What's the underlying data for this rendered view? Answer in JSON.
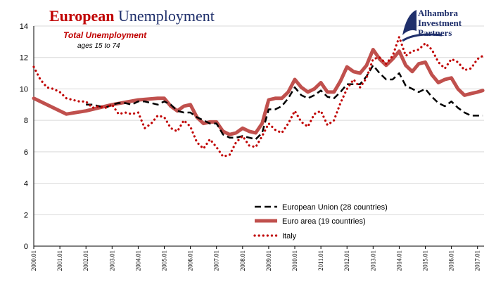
{
  "header": {
    "title_part1": "European",
    "title_part2": "Unemployment"
  },
  "logo": {
    "line1": "Alhambra",
    "line2": "Investment",
    "line3": "Partners",
    "colors": {
      "navy": "#1f2f6b"
    }
  },
  "chart_data": {
    "type": "line",
    "title": "European Unemployment",
    "annotation_title": "Total Unemployment",
    "annotation_sub": "ages 15 to 74",
    "ylim": [
      0,
      14
    ],
    "yticks": [
      0,
      2,
      4,
      6,
      8,
      10,
      12,
      14
    ],
    "xlim": [
      2000.0,
      2017.25
    ],
    "xticks": [
      "2000.01",
      "2001.01",
      "2002.01",
      "2003.01",
      "2004.01",
      "2005.01",
      "2006.01",
      "2007.01",
      "2008.01",
      "2009.01",
      "2010.01",
      "2011.01",
      "2012.01",
      "2013.01",
      "2014.01",
      "2015.01",
      "2016.01",
      "2017.01"
    ],
    "legend_position": "bottom-right",
    "series": [
      {
        "name": "European Union (28 countries)",
        "color": "#000000",
        "style": "dashed",
        "x": [
          2002.0,
          2002.25,
          2002.5,
          2002.75,
          2003.0,
          2003.25,
          2003.5,
          2003.75,
          2004.0,
          2004.25,
          2004.5,
          2004.75,
          2005.0,
          2005.25,
          2005.5,
          2005.75,
          2006.0,
          2006.25,
          2006.5,
          2006.75,
          2007.0,
          2007.25,
          2007.5,
          2007.75,
          2008.0,
          2008.25,
          2008.5,
          2008.75,
          2009.0,
          2009.25,
          2009.5,
          2009.75,
          2010.0,
          2010.25,
          2010.5,
          2010.75,
          2011.0,
          2011.25,
          2011.5,
          2011.75,
          2012.0,
          2012.25,
          2012.5,
          2012.75,
          2013.0,
          2013.25,
          2013.5,
          2013.75,
          2014.0,
          2014.25,
          2014.5,
          2014.75,
          2015.0,
          2015.25,
          2015.5,
          2015.75,
          2016.0,
          2016.25,
          2016.5,
          2016.75,
          2017.0,
          2017.2
        ],
        "values": [
          9.0,
          9.0,
          8.9,
          8.8,
          9.0,
          9.1,
          9.1,
          9.0,
          9.2,
          9.2,
          9.1,
          9.0,
          9.2,
          9.0,
          8.6,
          8.5,
          8.5,
          8.2,
          8.0,
          7.8,
          7.8,
          7.1,
          6.9,
          6.9,
          7.0,
          6.9,
          6.8,
          7.2,
          8.7,
          8.7,
          8.9,
          9.4,
          10.1,
          9.6,
          9.4,
          9.6,
          9.9,
          9.5,
          9.4,
          9.8,
          10.3,
          10.3,
          10.3,
          10.8,
          11.5,
          11.0,
          10.6,
          10.6,
          11.0,
          10.2,
          10.0,
          9.8,
          10.0,
          9.5,
          9.1,
          8.9,
          9.2,
          8.8,
          8.5,
          8.3,
          8.3,
          8.3
        ]
      },
      {
        "name": "Euro area (19 countries)",
        "color": "#c0504d",
        "style": "solid",
        "x": [
          2000.0,
          2001.25,
          2002.0,
          2003.0,
          2004.0,
          2004.75,
          2005.0,
          2005.25,
          2005.5,
          2005.75,
          2006.0,
          2006.25,
          2006.5,
          2006.75,
          2007.0,
          2007.25,
          2007.5,
          2007.75,
          2008.0,
          2008.25,
          2008.5,
          2008.75,
          2009.0,
          2009.25,
          2009.5,
          2009.75,
          2010.0,
          2010.25,
          2010.5,
          2010.75,
          2011.0,
          2011.25,
          2011.5,
          2011.75,
          2012.0,
          2012.25,
          2012.5,
          2012.75,
          2013.0,
          2013.25,
          2013.5,
          2013.75,
          2014.0,
          2014.25,
          2014.5,
          2014.75,
          2015.0,
          2015.25,
          2015.5,
          2015.75,
          2016.0,
          2016.25,
          2016.5,
          2016.75,
          2017.0,
          2017.2
        ],
        "values": [
          9.4,
          8.4,
          8.6,
          9.0,
          9.3,
          9.4,
          9.4,
          8.9,
          8.6,
          8.9,
          9.0,
          8.2,
          7.8,
          7.9,
          7.9,
          7.3,
          7.1,
          7.2,
          7.5,
          7.3,
          7.2,
          7.8,
          9.3,
          9.4,
          9.4,
          9.8,
          10.6,
          10.1,
          9.8,
          10.0,
          10.4,
          9.8,
          9.8,
          10.5,
          11.4,
          11.1,
          11.0,
          11.5,
          12.5,
          11.9,
          11.5,
          11.9,
          12.4,
          11.5,
          11.1,
          11.6,
          11.7,
          10.9,
          10.4,
          10.6,
          10.7,
          10.0,
          9.6,
          9.7,
          9.8,
          9.9
        ]
      },
      {
        "name": "Italy",
        "color": "#c00000",
        "style": "dotted",
        "x": [
          2000.0,
          2000.25,
          2000.5,
          2000.75,
          2001.0,
          2001.25,
          2001.5,
          2001.75,
          2002.0,
          2002.25,
          2002.5,
          2002.75,
          2003.0,
          2003.25,
          2003.5,
          2003.75,
          2004.0,
          2004.25,
          2004.5,
          2004.75,
          2005.0,
          2005.25,
          2005.5,
          2005.75,
          2006.0,
          2006.25,
          2006.5,
          2006.75,
          2007.0,
          2007.25,
          2007.5,
          2007.75,
          2008.0,
          2008.25,
          2008.5,
          2008.75,
          2009.0,
          2009.25,
          2009.5,
          2009.75,
          2010.0,
          2010.25,
          2010.5,
          2010.75,
          2011.0,
          2011.25,
          2011.5,
          2011.75,
          2012.0,
          2012.25,
          2012.5,
          2012.75,
          2013.0,
          2013.25,
          2013.5,
          2013.75,
          2014.0,
          2014.25,
          2014.5,
          2014.75,
          2015.0,
          2015.25,
          2015.5,
          2015.75,
          2016.0,
          2016.25,
          2016.5,
          2016.75,
          2017.0,
          2017.2
        ],
        "values": [
          11.4,
          10.6,
          10.1,
          10.0,
          9.8,
          9.4,
          9.3,
          9.2,
          9.2,
          8.8,
          8.9,
          8.8,
          9.0,
          8.4,
          8.5,
          8.4,
          8.5,
          7.5,
          7.8,
          8.3,
          8.2,
          7.5,
          7.3,
          8.0,
          7.6,
          6.6,
          6.2,
          6.8,
          6.3,
          5.7,
          5.8,
          6.6,
          7.0,
          6.4,
          6.3,
          7.0,
          7.8,
          7.4,
          7.2,
          7.8,
          8.6,
          7.9,
          7.6,
          8.4,
          8.6,
          7.7,
          8.0,
          9.1,
          10.0,
          10.6,
          10.1,
          10.7,
          11.9,
          12.0,
          11.6,
          12.1,
          13.3,
          12.1,
          12.4,
          12.5,
          12.9,
          12.5,
          11.7,
          11.3,
          11.9,
          11.7,
          11.2,
          11.3,
          11.9,
          12.1
        ]
      }
    ]
  }
}
